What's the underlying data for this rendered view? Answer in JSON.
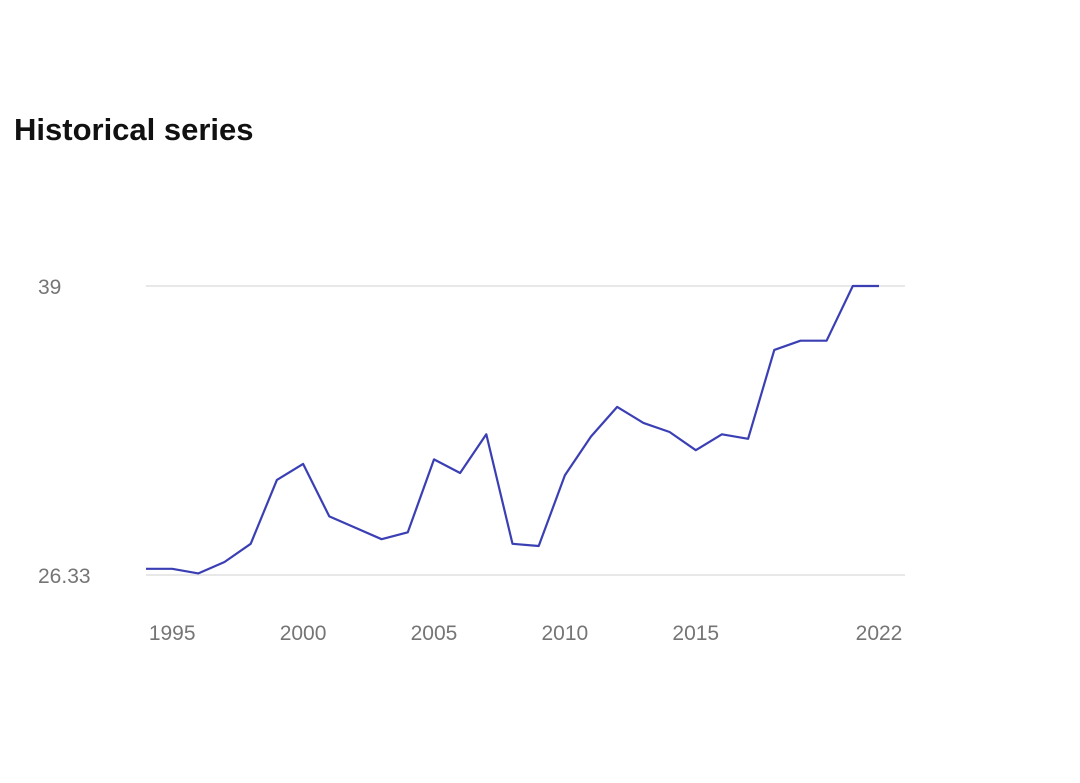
{
  "chart_data": {
    "type": "line",
    "title": "Historical series",
    "xlabel": "",
    "ylabel": "",
    "x_ticks": [
      "1995",
      "2000",
      "2005",
      "2010",
      "2015",
      "2022"
    ],
    "y_ticks": [
      "39",
      "26.33"
    ],
    "ylim": [
      26.33,
      39
    ],
    "grid": true,
    "legend": "none",
    "line_color": "#3b3fb4",
    "grid_color": "#e8e8e8",
    "tick_color": "#757575",
    "series": [
      {
        "x": [
          1994,
          1995,
          1996,
          1997,
          1998,
          1999,
          2000,
          2001,
          2002,
          2003,
          2004,
          2005,
          2006,
          2007,
          2008,
          2009,
          2010,
          2011,
          2012,
          2013,
          2014,
          2015,
          2016,
          2017,
          2018,
          2019,
          2020,
          2021,
          2022
        ],
        "values": [
          26.6,
          26.6,
          26.4,
          26.9,
          27.7,
          30.5,
          31.2,
          28.9,
          28.4,
          27.9,
          28.2,
          31.4,
          30.8,
          32.5,
          27.7,
          27.6,
          30.7,
          32.4,
          33.7,
          33.0,
          32.6,
          31.8,
          32.5,
          32.3,
          36.2,
          36.6,
          36.6,
          39.0,
          39.0
        ]
      }
    ]
  }
}
